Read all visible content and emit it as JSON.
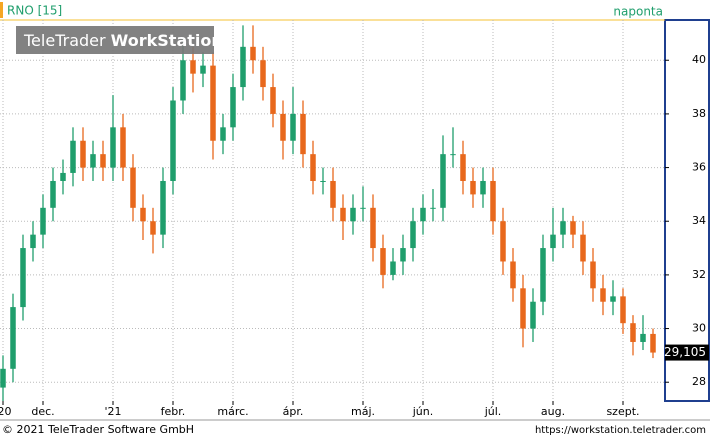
{
  "chart_data": {
    "type": "candlestick",
    "title": "RNO [15]",
    "period": "naponta",
    "watermark_light": "TeleTrader",
    "watermark_bold": "WorkStation",
    "footer_left": "© 2021 TeleTrader Software GmbH",
    "footer_right": "https://workstation.teletrader.com",
    "up_color": "#1f9e6c",
    "down_color": "#e8681c",
    "grid": true,
    "open": [
      27.8,
      28.5,
      30.8,
      33,
      33.5,
      34.5,
      35.5,
      35.8,
      37,
      36,
      36.5,
      36,
      37.5,
      36,
      34.5,
      34,
      33.5,
      35.5,
      38.5,
      40,
      39.5,
      39.8,
      37,
      37.5,
      39,
      40.5,
      40,
      39,
      38,
      37,
      38,
      36.5,
      35.5,
      35.5,
      34.5,
      34,
      34.5,
      34.5,
      33,
      32,
      32.5,
      33,
      34,
      34.5,
      34.5,
      36.5,
      36.5,
      35.5,
      35,
      35.5,
      34,
      32.5,
      31.5,
      30,
      31,
      33,
      33.5,
      34,
      33.5,
      32.5,
      31.5,
      31,
      31.2,
      30.2,
      29.5,
      29.8
    ],
    "high": [
      29,
      31.3,
      33.5,
      34,
      35,
      36,
      36.3,
      37.5,
      37.5,
      37,
      37,
      38.7,
      38,
      36.5,
      35,
      34.5,
      36,
      39,
      40.8,
      40.5,
      40.3,
      40.3,
      38,
      39.5,
      41.3,
      41.3,
      40.5,
      39.5,
      38.5,
      39,
      38.5,
      37,
      36,
      36,
      35,
      35,
      35.3,
      35,
      33.5,
      33,
      33.5,
      34.5,
      35,
      35.2,
      37.2,
      37.5,
      37,
      36,
      36,
      36,
      34.5,
      33,
      32,
      31.5,
      33.5,
      34.5,
      34.5,
      34.2,
      34,
      33,
      32,
      31.8,
      31.5,
      30.5,
      30.5,
      30
    ],
    "low": [
      27.3,
      28,
      30.3,
      32.5,
      33,
      34,
      35,
      35.3,
      35.5,
      35.5,
      35.5,
      35.5,
      35.5,
      34,
      33.3,
      32.8,
      33,
      35,
      38,
      38.8,
      39,
      36.3,
      36.5,
      37,
      38.5,
      39.5,
      38.5,
      37.5,
      36.3,
      36.5,
      36,
      35,
      35,
      34,
      33.3,
      33.5,
      34,
      32.5,
      31.5,
      31.8,
      32,
      32.5,
      33.5,
      34,
      34,
      36,
      35,
      34.5,
      34.5,
      33.5,
      32,
      31,
      29.3,
      29.5,
      30.5,
      32.5,
      33,
      33,
      32,
      31,
      30.5,
      30.5,
      29.8,
      29,
      29.2,
      28.9
    ],
    "close": [
      28.5,
      30.8,
      33,
      33.5,
      34.5,
      35.5,
      35.8,
      37,
      36,
      36.5,
      36,
      37.5,
      36,
      34.5,
      34,
      33.5,
      35.5,
      38.5,
      40,
      39.5,
      39.8,
      37,
      37.5,
      39,
      40.5,
      40,
      39,
      38,
      37,
      38,
      36.5,
      35.5,
      35.5,
      34.5,
      34,
      34.5,
      34.5,
      33,
      32,
      32.5,
      33,
      34,
      34.5,
      34.5,
      36.5,
      36.5,
      35.5,
      35,
      35.5,
      34,
      32.5,
      31.5,
      30,
      31,
      33,
      33.5,
      34,
      33.5,
      32.5,
      31.5,
      31,
      31.2,
      30.2,
      29.5,
      29.8,
      29.105
    ],
    "last_label": "29,105",
    "xlim": [
      -0.3,
      66.2
    ],
    "xticks": [
      {
        "value": 0,
        "label": "'20"
      },
      {
        "value": 4,
        "label": "dec."
      },
      {
        "value": 11,
        "label": "'21"
      },
      {
        "value": 17,
        "label": "febr."
      },
      {
        "value": 23,
        "label": "márc."
      },
      {
        "value": 29,
        "label": "ápr."
      },
      {
        "value": 36,
        "label": "máj."
      },
      {
        "value": 42,
        "label": "jún."
      },
      {
        "value": 49,
        "label": "júl."
      },
      {
        "value": 55,
        "label": "aug."
      },
      {
        "value": 62,
        "label": "szept."
      }
    ],
    "ylim": [
      27.3,
      41.5
    ],
    "yticks": [
      28,
      30,
      32,
      34,
      36,
      38,
      40
    ]
  }
}
